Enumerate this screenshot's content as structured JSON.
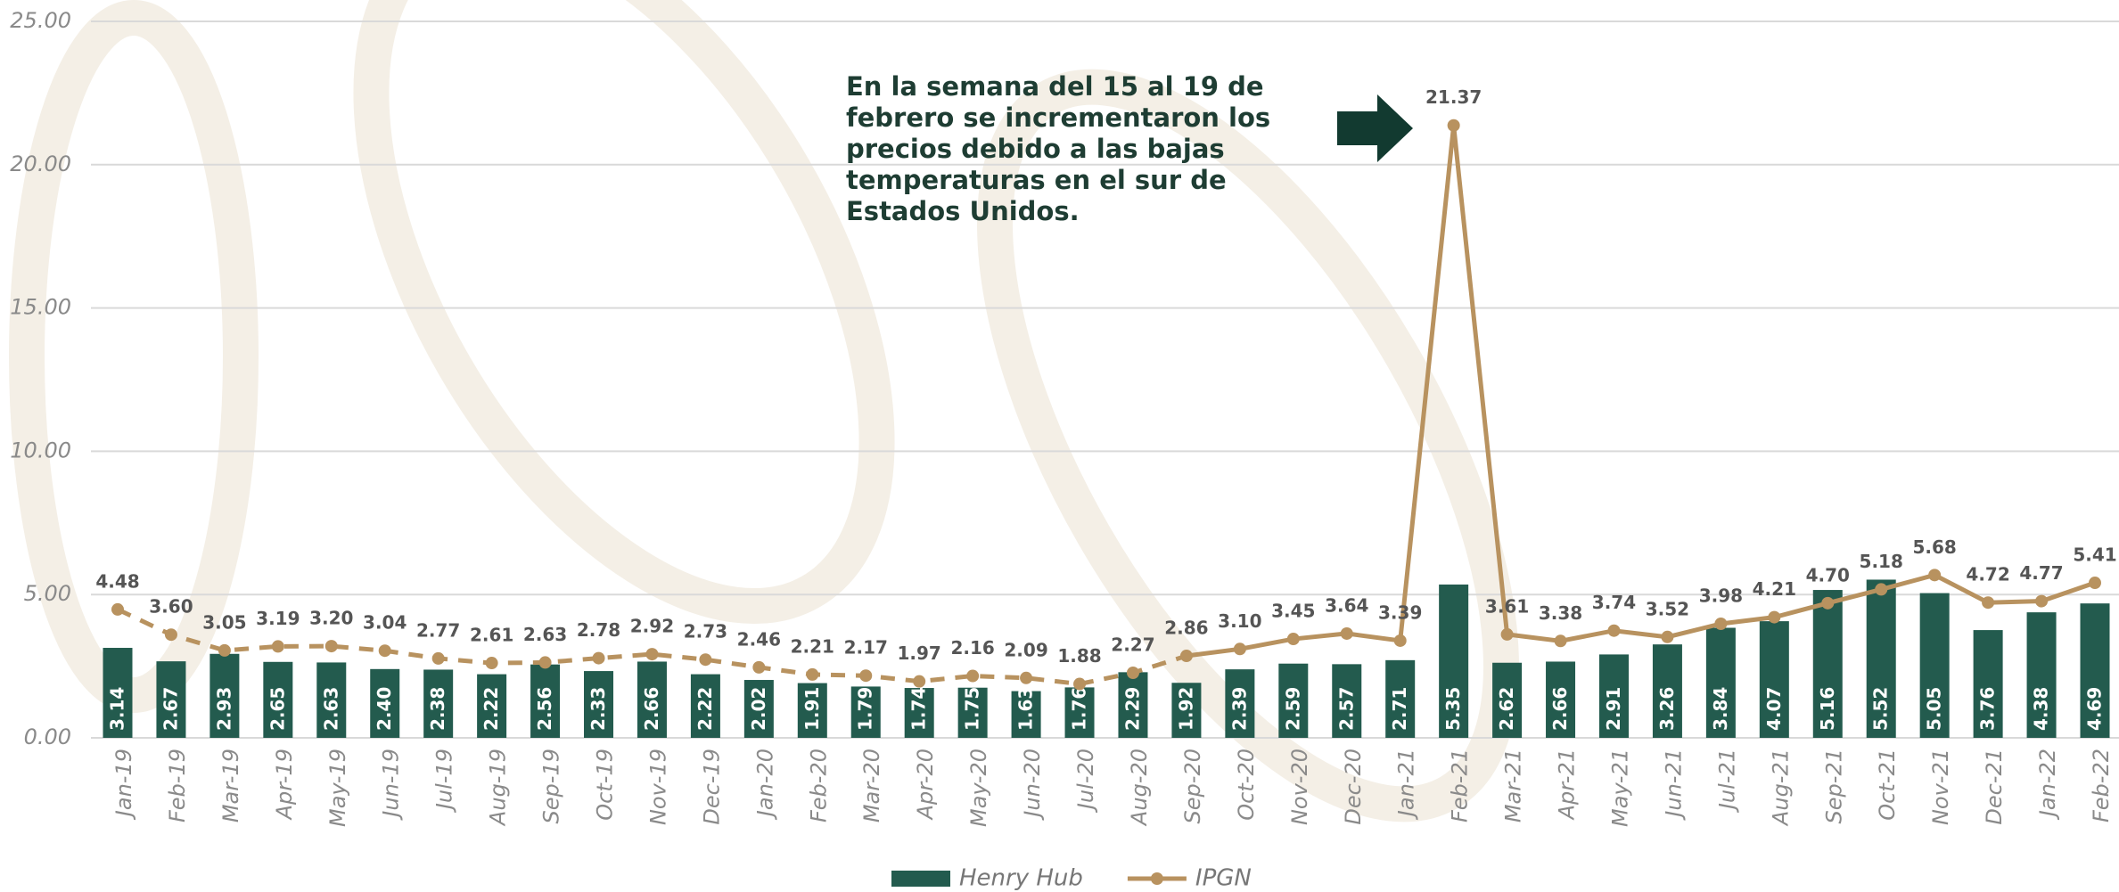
{
  "chart_data": {
    "type": "bar_line",
    "categories": [
      "Jan-19",
      "Feb-19",
      "Mar-19",
      "Apr-19",
      "May-19",
      "Jun-19",
      "Jul-19",
      "Aug-19",
      "Sep-19",
      "Oct-19",
      "Nov-19",
      "Dec-19",
      "Jan-20",
      "Feb-20",
      "Mar-20",
      "Apr-20",
      "May-20",
      "Jun-20",
      "Jul-20",
      "Aug-20",
      "Sep-20",
      "Oct-20",
      "Nov-20",
      "Dec-20",
      "Jan-21",
      "Feb-21",
      "Mar-21",
      "Apr-21",
      "May-21",
      "Jun-21",
      "Jul-21",
      "Aug-21",
      "Sep-21",
      "Oct-21",
      "Nov-21",
      "Dec-21",
      "Jan-22",
      "Feb-22"
    ],
    "series": [
      {
        "name": "Henry Hub",
        "type": "bar",
        "color": "#235b4e",
        "values": [
          3.14,
          2.67,
          2.93,
          2.65,
          2.63,
          2.4,
          2.38,
          2.22,
          2.56,
          2.33,
          2.66,
          2.22,
          2.02,
          1.91,
          1.79,
          1.74,
          1.75,
          1.63,
          1.76,
          2.29,
          1.92,
          2.39,
          2.59,
          2.57,
          2.71,
          5.35,
          2.62,
          2.66,
          2.91,
          3.26,
          3.84,
          4.07,
          5.16,
          5.52,
          5.05,
          3.76,
          4.38,
          4.69
        ],
        "value_labels": [
          "3.14",
          "2.67",
          "2.93",
          "2.65",
          "2.63",
          "2.40",
          "2.38",
          "2.22",
          "2.56",
          "2.33",
          "2.66",
          "2.22",
          "2.02",
          "1.91",
          "1.79",
          "1.74",
          "1.75",
          "1.63",
          "1.76",
          "2.29",
          "1.92",
          "2.39",
          "2.59",
          "2.57",
          "2.71",
          "5.35",
          "2.62",
          "2.66",
          "2.91",
          "3.26",
          "3.84",
          "4.07",
          "5.16",
          "5.52",
          "5.05",
          "3.76",
          "4.38",
          "4.69"
        ]
      },
      {
        "name": "IPGN",
        "type": "line",
        "color": "#b8925f",
        "dashed_until": "Sep-20",
        "values": [
          4.48,
          3.6,
          3.05,
          3.19,
          3.2,
          3.04,
          2.77,
          2.61,
          2.63,
          2.78,
          2.92,
          2.73,
          2.46,
          2.21,
          2.17,
          1.97,
          2.16,
          2.09,
          1.88,
          2.27,
          2.86,
          3.1,
          3.45,
          3.64,
          3.39,
          21.37,
          3.61,
          3.38,
          3.74,
          3.52,
          3.98,
          4.21,
          4.7,
          5.18,
          5.68,
          4.72,
          4.77,
          5.41
        ],
        "value_labels": [
          "4.48",
          "3.60",
          "3.05",
          "3.19",
          "3.20",
          "3.04",
          "2.77",
          "2.61",
          "2.63",
          "2.78",
          "2.92",
          "2.73",
          "2.46",
          "2.21",
          "2.17",
          "1.97",
          "2.16",
          "2.09",
          "1.88",
          "2.27",
          "2.86",
          "3.10",
          "3.45",
          "3.64",
          "3.39",
          "21.37",
          "3.61",
          "3.38",
          "3.74",
          "3.52",
          "3.98",
          "4.21",
          "4.70",
          "5.18",
          "5.68",
          "4.72",
          "4.77",
          "5.41"
        ]
      }
    ],
    "ylim": [
      0,
      25
    ],
    "yticks": [
      {
        "value": 0,
        "label": "0.00"
      },
      {
        "value": 5,
        "label": "5.00"
      },
      {
        "value": 10,
        "label": "10.00"
      },
      {
        "value": 15,
        "label": "15.00"
      },
      {
        "value": 20,
        "label": "20.00"
      },
      {
        "value": 25,
        "label": "25.00"
      }
    ],
    "grid": true,
    "annotation": "En la semana del 15 al 19 de febrero se incrementaron los precios debido a las bajas temperaturas en el sur de Estados Unidos."
  }
}
